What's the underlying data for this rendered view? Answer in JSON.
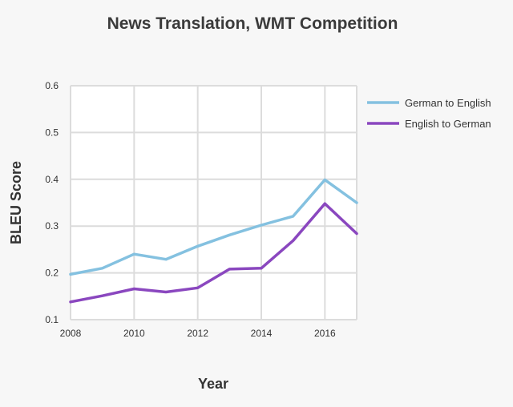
{
  "chart_data": {
    "type": "line",
    "title": "News Translation, WMT Competition",
    "xlabel": "Year",
    "ylabel": "BLEU Score",
    "x": [
      2008,
      2009,
      2010,
      2011,
      2012,
      2013,
      2014,
      2015,
      2016,
      2017
    ],
    "x_ticks": [
      "2008",
      "2010",
      "2012",
      "2014",
      "2016"
    ],
    "y_ticks": [
      "0.1",
      "0.2",
      "0.3",
      "0.4",
      "0.5",
      "0.6"
    ],
    "xlim": [
      2008,
      2017
    ],
    "ylim": [
      0.1,
      0.6
    ],
    "grid": true,
    "legend_position": "right",
    "series": [
      {
        "name": "German to English",
        "color": "#84c1e0",
        "values": [
          0.197,
          0.21,
          0.24,
          0.229,
          0.257,
          0.281,
          0.302,
          0.321,
          0.399,
          0.35
        ]
      },
      {
        "name": "English to German",
        "color": "#8a47bf",
        "values": [
          0.138,
          0.151,
          0.166,
          0.159,
          0.168,
          0.208,
          0.21,
          0.269,
          0.348,
          0.284
        ]
      }
    ]
  }
}
